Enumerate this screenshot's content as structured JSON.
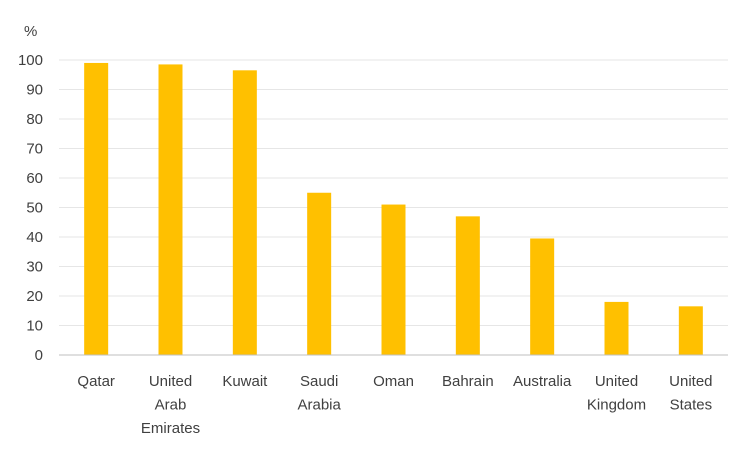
{
  "chart_data": {
    "type": "bar",
    "ylabel": "%",
    "ylim": [
      0,
      100
    ],
    "yticks": [
      0,
      10,
      20,
      30,
      40,
      50,
      60,
      70,
      80,
      90,
      100
    ],
    "grid": true,
    "bar_color": "#FFC000",
    "categories": [
      "Qatar",
      "United Arab Emirates",
      "Kuwait",
      "Saudi Arabia",
      "Oman",
      "Bahrain",
      "Australia",
      "United Kingdom",
      "United States"
    ],
    "category_lines": [
      [
        "Qatar"
      ],
      [
        "United",
        "Arab",
        "Emirates"
      ],
      [
        "Kuwait"
      ],
      [
        "Saudi",
        "Arabia"
      ],
      [
        "Oman"
      ],
      [
        "Bahrain"
      ],
      [
        "Australia"
      ],
      [
        "United",
        "Kingdom"
      ],
      [
        "United",
        "States"
      ]
    ],
    "values": [
      99,
      98.5,
      96.5,
      55,
      51,
      47,
      39.5,
      18,
      16.5
    ]
  }
}
